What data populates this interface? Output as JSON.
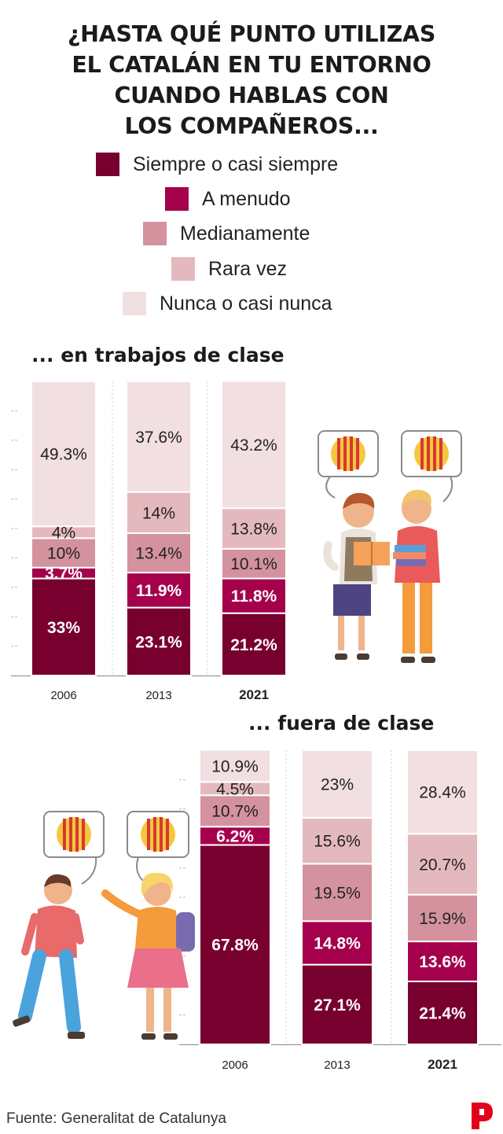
{
  "title_lines": [
    "¿HASTA QUÉ PUNTO UTILIZAS",
    "EL CATALÁN EN TU ENTORNO",
    "CUANDO HABLAS CON",
    "LOS COMPAÑEROS..."
  ],
  "legend": [
    {
      "label": "Siempre o casi siempre",
      "color": "#78002f"
    },
    {
      "label": "A menudo",
      "color": "#a5004b"
    },
    {
      "label": "Medianamente",
      "color": "#d4929e"
    },
    {
      "label": "Rara vez",
      "color": "#e4b9be"
    },
    {
      "label": "Nunca o casi nunca",
      "color": "#f2dfe1"
    }
  ],
  "chart_data": [
    {
      "type": "bar",
      "stacked": true,
      "title": "... en trabajos de clase",
      "categories": [
        "2006",
        "2013",
        "2021"
      ],
      "series": [
        {
          "name": "Siempre o casi siempre",
          "values": [
            33,
            23.1,
            21.2
          ],
          "labels": [
            "33%",
            "23.1%",
            "21.2%"
          ]
        },
        {
          "name": "A menudo",
          "values": [
            3.7,
            11.9,
            11.8
          ],
          "labels": [
            "3.7%",
            "11.9%",
            "11.8%"
          ]
        },
        {
          "name": "Medianamente",
          "values": [
            10,
            13.4,
            10.1
          ],
          "labels": [
            "10%",
            "13.4%",
            "10.1%"
          ]
        },
        {
          "name": "Rara vez",
          "values": [
            4,
            14,
            13.8
          ],
          "labels": [
            "4%",
            "14%",
            "13.8%"
          ]
        },
        {
          "name": "Nunca o casi nunca",
          "values": [
            49.3,
            37.6,
            43.2
          ],
          "labels": [
            "49.3%",
            "37.6%",
            "43.2%"
          ]
        }
      ],
      "ylim": [
        0,
        100
      ],
      "grid": "dashed"
    },
    {
      "type": "bar",
      "stacked": true,
      "title": "... fuera de clase",
      "categories": [
        "2006",
        "2013",
        "2021"
      ],
      "series": [
        {
          "name": "Siempre o casi siempre",
          "values": [
            67.8,
            27.1,
            21.4
          ],
          "labels": [
            "67.8%",
            "27.1%",
            "21.4%"
          ]
        },
        {
          "name": "A menudo",
          "values": [
            6.2,
            14.8,
            13.6
          ],
          "labels": [
            "6.2%",
            "14.8%",
            "13.6%"
          ]
        },
        {
          "name": "Medianamente",
          "values": [
            10.7,
            19.5,
            15.9
          ],
          "labels": [
            "10.7%",
            "19.5%",
            "15.9%"
          ]
        },
        {
          "name": "Rara vez",
          "values": [
            4.5,
            15.6,
            20.7
          ],
          "labels": [
            "4.5%",
            "15.6%",
            "20.7%"
          ]
        },
        {
          "name": "Nunca o casi nunca",
          "values": [
            10.9,
            23,
            28.4
          ],
          "labels": [
            "10.9%",
            "23%",
            "28.4%"
          ]
        }
      ],
      "ylim": [
        0,
        100
      ],
      "grid": "dashed"
    }
  ],
  "source": "Fuente: Generalitat de Catalunya",
  "logo_letter": "P",
  "colors": {
    "logo": "#e3001b",
    "flag_red": "#d93832",
    "flag_yellow": "#f4c73d",
    "text_dark": "#1b1b1b"
  }
}
